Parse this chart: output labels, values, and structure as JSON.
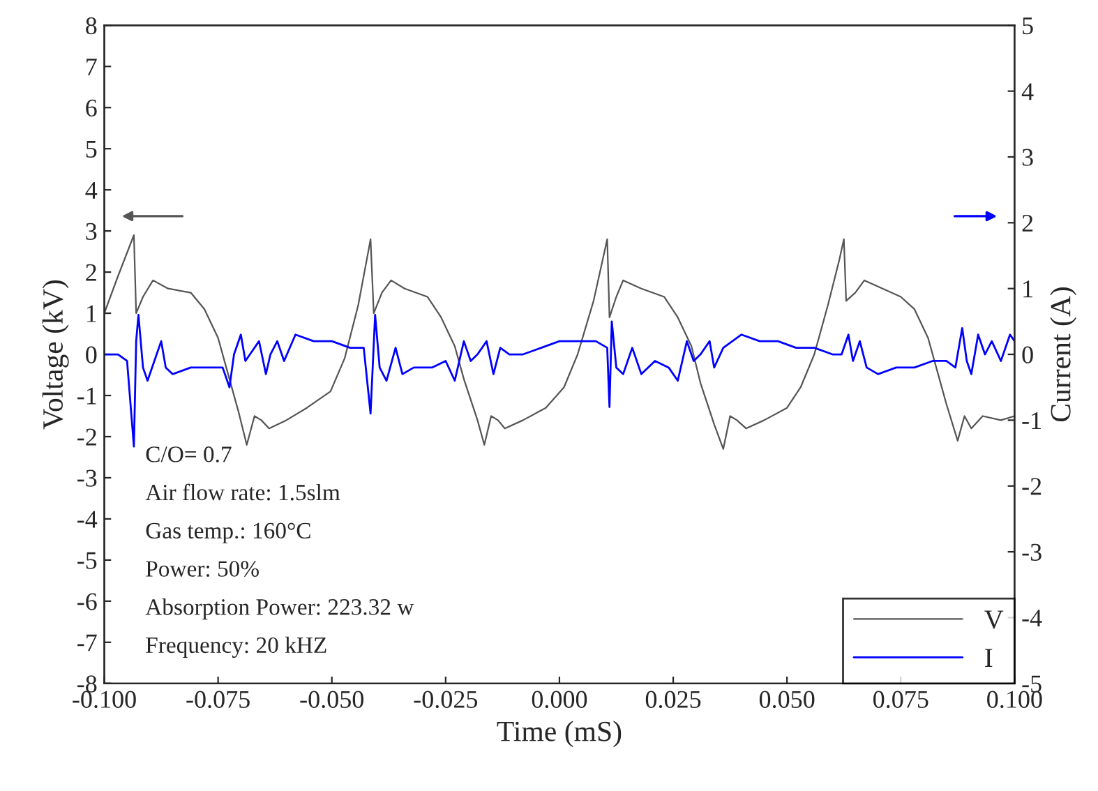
{
  "chart_data": {
    "type": "line",
    "xlabel": "Time (mS)",
    "ylabel": "Voltage (kV)",
    "y2label": "Current (A)",
    "xlim": [
      -0.1,
      0.1
    ],
    "xticks": [
      {
        "value": -0.1,
        "label": "-0.100"
      },
      {
        "value": -0.075,
        "label": "-0.075"
      },
      {
        "value": -0.05,
        "label": "-0.050"
      },
      {
        "value": -0.025,
        "label": "-0.025"
      },
      {
        "value": 0,
        "label": "0.000"
      },
      {
        "value": 0.025,
        "label": "0.025"
      },
      {
        "value": 0.05,
        "label": "0.050"
      },
      {
        "value": 0.075,
        "label": "0.075"
      },
      {
        "value": 0.1,
        "label": "0.100"
      }
    ],
    "ylim": [
      -8,
      8
    ],
    "yticks": [
      -8,
      -7,
      -6,
      -5,
      -4,
      -3,
      -2,
      -1,
      0,
      1,
      2,
      3,
      4,
      5,
      6,
      7,
      8
    ],
    "y2lim": [
      -5,
      5
    ],
    "y2ticks": [
      -5,
      -4,
      -3,
      -2,
      -1,
      0,
      1,
      2,
      3,
      4,
      5
    ],
    "grid": false,
    "legend": "bottom right",
    "line_style": "solid",
    "marker": "none",
    "annotations": [
      "C/O= 0.7",
      "Air flow rate: 1.5slm",
      "Gas temp.: 160°C",
      "Power: 50%",
      "Absorption Power: 223.32 w",
      "Frequency: 20 kHZ"
    ],
    "series": [
      {
        "name": "V",
        "color": "#555555",
        "x": [
          -0.1,
          -0.097,
          -0.0935,
          -0.093,
          -0.0915,
          -0.0893,
          -0.086,
          -0.081,
          -0.078,
          -0.075,
          -0.073,
          -0.0705,
          -0.0687,
          -0.067,
          -0.0655,
          -0.0638,
          -0.06,
          -0.0555,
          -0.0503,
          -0.0472,
          -0.0442,
          -0.042,
          -0.0415,
          -0.0408,
          -0.039,
          -0.037,
          -0.034,
          -0.029,
          -0.026,
          -0.023,
          -0.021,
          -0.018,
          -0.0165,
          -0.015,
          -0.0135,
          -0.012,
          -0.008,
          -0.003,
          0.001,
          0.004,
          0.0075,
          0.0095,
          0.0105,
          0.011,
          0.0125,
          0.014,
          0.018,
          0.023,
          0.026,
          0.029,
          0.031,
          0.034,
          0.036,
          0.0375,
          0.039,
          0.041,
          0.045,
          0.05,
          0.053,
          0.056,
          0.059,
          0.0615,
          0.0625,
          0.063,
          0.065,
          0.067,
          0.071,
          0.075,
          0.078,
          0.081,
          0.083,
          0.085,
          0.0875,
          0.089,
          0.0905,
          0.093,
          0.097,
          0.1
        ],
        "values": [
          1.0,
          1.9,
          2.9,
          1.0,
          1.4,
          1.8,
          1.6,
          1.5,
          1.1,
          0.4,
          -0.4,
          -1.4,
          -2.2,
          -1.5,
          -1.6,
          -1.8,
          -1.6,
          -1.3,
          -0.9,
          -0.1,
          1.2,
          2.5,
          2.8,
          1.0,
          1.5,
          1.8,
          1.6,
          1.4,
          0.9,
          0.2,
          -0.6,
          -1.6,
          -2.2,
          -1.5,
          -1.6,
          -1.8,
          -1.6,
          -1.3,
          -0.8,
          0.0,
          1.3,
          2.3,
          2.8,
          0.9,
          1.4,
          1.8,
          1.6,
          1.4,
          0.9,
          0.2,
          -0.7,
          -1.7,
          -2.3,
          -1.5,
          -1.6,
          -1.8,
          -1.6,
          -1.3,
          -0.8,
          0.0,
          1.2,
          2.3,
          2.8,
          1.3,
          1.5,
          1.8,
          1.6,
          1.4,
          1.1,
          0.4,
          -0.4,
          -1.2,
          -2.1,
          -1.5,
          -1.8,
          -1.5,
          -1.6,
          -1.5
        ]
      },
      {
        "name": "I",
        "color": "#0000ff",
        "axis": "y2",
        "x": [
          -0.1,
          -0.097,
          -0.095,
          -0.0935,
          -0.093,
          -0.0925,
          -0.0915,
          -0.0905,
          -0.089,
          -0.0875,
          -0.0865,
          -0.085,
          -0.081,
          -0.077,
          -0.074,
          -0.0725,
          -0.0715,
          -0.07,
          -0.069,
          -0.068,
          -0.066,
          -0.0645,
          -0.0635,
          -0.062,
          -0.0605,
          -0.058,
          -0.054,
          -0.05,
          -0.046,
          -0.043,
          -0.0415,
          -0.0405,
          -0.0395,
          -0.038,
          -0.036,
          -0.0345,
          -0.032,
          -0.028,
          -0.025,
          -0.023,
          -0.021,
          -0.0195,
          -0.018,
          -0.016,
          -0.0145,
          -0.013,
          -0.011,
          -0.008,
          -0.004,
          0.0,
          0.004,
          0.008,
          0.0105,
          0.011,
          0.0115,
          0.0125,
          0.014,
          0.016,
          0.018,
          0.021,
          0.024,
          0.026,
          0.028,
          0.0295,
          0.031,
          0.033,
          0.034,
          0.036,
          0.04,
          0.044,
          0.048,
          0.052,
          0.056,
          0.06,
          0.062,
          0.0635,
          0.0645,
          0.066,
          0.0675,
          0.07,
          0.074,
          0.078,
          0.082,
          0.085,
          0.087,
          0.0885,
          0.0895,
          0.0905,
          0.092,
          0.0935,
          0.095,
          0.097,
          0.099,
          0.1
        ],
        "values": [
          0.0,
          0.0,
          -0.1,
          -1.4,
          0.2,
          0.6,
          -0.2,
          -0.4,
          -0.1,
          0.2,
          -0.2,
          -0.3,
          -0.2,
          -0.2,
          -0.2,
          -0.5,
          0.0,
          0.3,
          -0.1,
          0.0,
          0.2,
          -0.3,
          0.0,
          0.2,
          -0.1,
          0.3,
          0.2,
          0.2,
          0.1,
          0.1,
          -0.9,
          0.6,
          -0.2,
          -0.4,
          0.1,
          -0.3,
          -0.2,
          -0.2,
          -0.1,
          -0.4,
          0.2,
          -0.1,
          0.0,
          0.2,
          -0.3,
          0.1,
          0.0,
          0.0,
          0.1,
          0.2,
          0.2,
          0.2,
          0.1,
          -0.8,
          0.5,
          -0.2,
          -0.3,
          0.1,
          -0.3,
          -0.1,
          -0.2,
          -0.4,
          0.2,
          -0.1,
          0.0,
          0.2,
          -0.2,
          0.1,
          0.3,
          0.2,
          0.2,
          0.1,
          0.1,
          0.0,
          0.0,
          0.3,
          -0.1,
          0.2,
          -0.2,
          -0.3,
          -0.2,
          -0.2,
          -0.1,
          -0.1,
          -0.2,
          0.4,
          -0.1,
          -0.3,
          0.3,
          0.0,
          0.2,
          -0.1,
          0.3,
          0.2
        ]
      }
    ]
  }
}
